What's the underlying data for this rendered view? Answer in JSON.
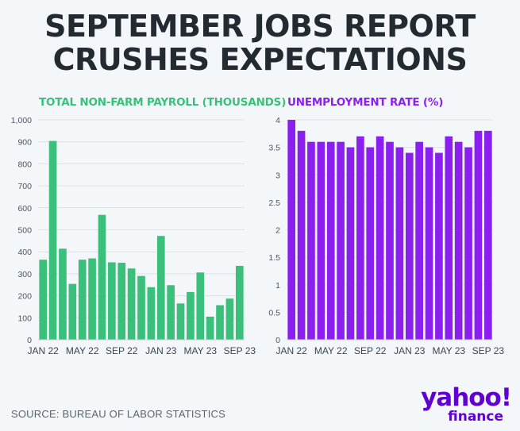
{
  "title_line1": "SEPTEMBER JOBS REPORT",
  "title_line2": "CRUSHES EXPECTATIONS",
  "source": "SOURCE: BUREAU OF LABOR STATISTICS",
  "logo": {
    "main": "yahoo!",
    "sub": "finance"
  },
  "colors": {
    "payroll": "#3ac07a",
    "unemployment": "#8a1ff0",
    "grid": "#dde2e6",
    "text": "#232a31"
  },
  "chart_data": [
    {
      "type": "bar",
      "title": "TOTAL NON-FARM PAYROLL (THOUSANDS)",
      "categories": [
        "Jan 22",
        "Feb 22",
        "Mar 22",
        "Apr 22",
        "May 22",
        "Jun 22",
        "Jul 22",
        "Aug 22",
        "Sep 22",
        "Oct 22",
        "Nov 22",
        "Dec 22",
        "Jan 23",
        "Feb 23",
        "Mar 23",
        "Apr 23",
        "May 23",
        "Jun 23",
        "Jul 23",
        "Aug 23",
        "Sep 23"
      ],
      "values": [
        364,
        904,
        414,
        254,
        364,
        370,
        568,
        352,
        350,
        324,
        290,
        239,
        472,
        248,
        165,
        217,
        306,
        105,
        157,
        187,
        336
      ],
      "ylim": [
        0,
        1000
      ],
      "yticks": [
        0,
        100,
        200,
        300,
        400,
        500,
        600,
        700,
        800,
        900,
        1000
      ],
      "ytick_labels": [
        "0",
        "100",
        "200",
        "300",
        "400",
        "500",
        "600",
        "700",
        "800",
        "900",
        "1,000"
      ],
      "xtick_labels": [
        "JAN 22",
        "MAY 22",
        "SEP 22",
        "JAN 23",
        "MAY 23",
        "SEP 23"
      ],
      "xtick_positions": [
        0,
        4,
        8,
        12,
        16,
        20
      ]
    },
    {
      "type": "bar",
      "title": "UNEMPLOYMENT RATE (%)",
      "categories": [
        "Jan 22",
        "Feb 22",
        "Mar 22",
        "Apr 22",
        "May 22",
        "Jun 22",
        "Jul 22",
        "Aug 22",
        "Sep 22",
        "Oct 22",
        "Nov 22",
        "Dec 22",
        "Jan 23",
        "Feb 23",
        "Mar 23",
        "Apr 23",
        "May 23",
        "Jun 23",
        "Jul 23",
        "Aug 23",
        "Sep 23"
      ],
      "values": [
        4.0,
        3.8,
        3.6,
        3.6,
        3.6,
        3.6,
        3.5,
        3.7,
        3.5,
        3.7,
        3.6,
        3.5,
        3.4,
        3.6,
        3.5,
        3.4,
        3.7,
        3.6,
        3.5,
        3.8,
        3.8
      ],
      "ylim": [
        0,
        4
      ],
      "yticks": [
        0,
        0.5,
        1,
        1.5,
        2,
        2.5,
        3,
        3.5,
        4
      ],
      "ytick_labels": [
        "0",
        "0.5",
        "1",
        "1.5",
        "2",
        "2.5",
        "3",
        "3.5",
        "4"
      ],
      "xtick_labels": [
        "JAN 22",
        "MAY 22",
        "SEP 22",
        "JAN 23",
        "MAY 23",
        "SEP 23"
      ],
      "xtick_positions": [
        0,
        4,
        8,
        12,
        16,
        20
      ]
    }
  ]
}
